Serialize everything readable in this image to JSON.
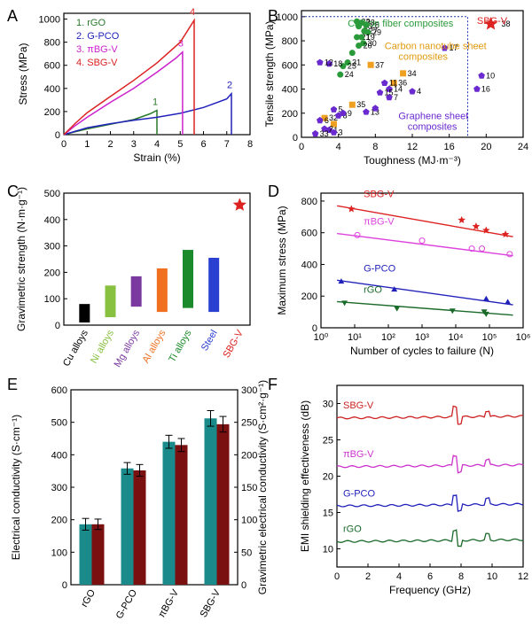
{
  "chart_data": [
    {
      "panel": "A",
      "type": "line",
      "xlabel": "Strain (%)",
      "ylabel": "Stress (MPa)",
      "xlim": [
        0,
        8
      ],
      "ylim": [
        0,
        1050
      ],
      "xticks": [
        0,
        1,
        2,
        3,
        4,
        5,
        6,
        7,
        8
      ],
      "yticks": [
        0,
        200,
        400,
        600,
        800,
        1000
      ],
      "legend_position": "top-left",
      "series": [
        {
          "name": "1. rGO",
          "label": "1",
          "color": "#2a7a2a",
          "x": [
            0,
            0.5,
            1.0,
            2.0,
            3.0,
            3.7,
            4.0,
            4.0
          ],
          "y": [
            0,
            25,
            50,
            90,
            130,
            180,
            210,
            0
          ]
        },
        {
          "name": "2. G-PCO",
          "label": "2",
          "color": "#2222bb",
          "x": [
            0,
            0.5,
            1.0,
            2.0,
            3.0,
            4.0,
            5.0,
            6.0,
            7.0,
            7.2,
            7.2
          ],
          "y": [
            0,
            30,
            60,
            95,
            125,
            150,
            185,
            235,
            310,
            355,
            0
          ]
        },
        {
          "name": "3. πBG-V",
          "label": "3",
          "color": "#cc22cc",
          "x": [
            0,
            0.5,
            1.0,
            2.0,
            3.0,
            4.0,
            4.8,
            5.1,
            5.1
          ],
          "y": [
            0,
            80,
            150,
            280,
            400,
            540,
            660,
            715,
            0
          ]
        },
        {
          "name": "4. SBG-V",
          "label": "4",
          "color": "#dd2222",
          "x": [
            0,
            0.5,
            1.0,
            2.0,
            3.0,
            4.0,
            5.0,
            5.6,
            5.6
          ],
          "y": [
            0,
            100,
            190,
            330,
            470,
            620,
            800,
            990,
            0
          ]
        }
      ]
    },
    {
      "panel": "B",
      "type": "scatter",
      "xlabel": "Toughness (MJ·m⁻³)",
      "ylabel": "Tensile strength (MPa)",
      "xlim": [
        0,
        24
      ],
      "ylim": [
        0,
        1050
      ],
      "xticks": [
        0,
        4,
        8,
        12,
        16,
        20,
        24
      ],
      "yticks": [
        0,
        200,
        400,
        600,
        800,
        1000
      ],
      "annotations": [
        "Carbon fiber composites",
        "Carbon nanotube sheet composites",
        "Graphene sheet composites",
        "SBG-V"
      ],
      "groups": [
        {
          "name": "Carbon fiber composites",
          "color": "#2a9a3a",
          "shape": "circle",
          "points": [
            [
              6.0,
              960,
              "22"
            ],
            [
              6.5,
              950,
              "23"
            ],
            [
              6.2,
              920,
              "26"
            ],
            [
              7.0,
              930,
              "28"
            ],
            [
              6.8,
              880,
              "27"
            ],
            [
              7.2,
              870,
              "29"
            ],
            [
              6.0,
              830,
              "21"
            ],
            [
              6.5,
              830,
              "19"
            ],
            [
              6.7,
              780,
              "30"
            ],
            [
              6.2,
              760,
              "20"
            ],
            [
              5.5,
              700,
              ""
            ],
            [
              5.0,
              620,
              "31"
            ],
            [
              4.5,
              590,
              "25"
            ],
            [
              4.2,
              520,
              "24"
            ]
          ]
        },
        {
          "name": "Carbon nanotube sheet composites",
          "color": "#f0a020",
          "shape": "square",
          "points": [
            [
              7.5,
              600,
              "37"
            ],
            [
              11.0,
              530,
              "34"
            ],
            [
              10.0,
              450,
              "36"
            ],
            [
              2.5,
              160,
              "32"
            ],
            [
              5.5,
              270,
              "35"
            ],
            [
              3.5,
              110,
              ""
            ]
          ]
        },
        {
          "name": "Graphene sheet composites",
          "color": "#6a2ad0",
          "shape": "pentagon",
          "points": [
            [
              3.0,
              610,
              "18"
            ],
            [
              2.0,
              620,
              "12"
            ],
            [
              15.5,
              740,
              "17"
            ],
            [
              19.5,
              510,
              "10"
            ],
            [
              19.0,
              400,
              "16"
            ],
            [
              9.0,
              450,
              "11"
            ],
            [
              9.5,
              400,
              "14"
            ],
            [
              8.5,
              370,
              "15"
            ],
            [
              9.5,
              330,
              "7"
            ],
            [
              7.0,
              210,
              "13"
            ],
            [
              3.5,
              230,
              "5"
            ],
            [
              4.0,
              180,
              "8"
            ],
            [
              2.0,
              140,
              "6"
            ],
            [
              3.0,
              60,
              "1"
            ],
            [
              2.5,
              70,
              "2"
            ],
            [
              3.5,
              40,
              "3"
            ],
            [
              1.5,
              30,
              "33"
            ],
            [
              8.0,
              240,
              ""
            ],
            [
              4.5,
              200,
              "9"
            ],
            [
              12.0,
              380,
              "4"
            ]
          ]
        },
        {
          "name": "SBG-V",
          "color": "#dd2222",
          "shape": "star",
          "points": [
            [
              20.5,
              940,
              "38"
            ]
          ]
        }
      ]
    },
    {
      "panel": "C",
      "type": "bar",
      "ylabel": "Gravimetric strength (N·m·g⁻¹)",
      "ylim": [
        0,
        500
      ],
      "yticks": [
        0,
        100,
        200,
        300,
        400,
        500
      ],
      "categories": [
        "Cu alloys",
        "Ni alloys",
        "Mg alloys",
        "Al alloys",
        "Ti alloys",
        "Steel",
        "SBG-V"
      ],
      "ranges": [
        [
          10,
          80
        ],
        [
          30,
          150
        ],
        [
          70,
          185
        ],
        [
          50,
          215
        ],
        [
          65,
          285
        ],
        [
          50,
          255
        ],
        [
          455,
          455
        ]
      ],
      "colors": [
        "#000000",
        "#88c040",
        "#7a3aa0",
        "#f07020",
        "#1a8a2a",
        "#2a40d0",
        "#dd2222"
      ]
    },
    {
      "panel": "D",
      "type": "scatter",
      "xlabel": "Number of cycles to failure (N)",
      "ylabel": "Maximum stress (MPa)",
      "xscale": "log",
      "xlim": [
        1,
        1000000
      ],
      "ylim": [
        0,
        850
      ],
      "xticks": [
        "10⁰",
        "10¹",
        "10²",
        "10³",
        "10⁴",
        "10⁵",
        "10⁶"
      ],
      "yticks": [
        0,
        200,
        400,
        600,
        800
      ],
      "series": [
        {
          "name": "SBG-V",
          "color": "#dd2222",
          "marker": "star",
          "x": [
            8,
            15000,
            40000,
            80000,
            300000
          ],
          "y": [
            750,
            680,
            640,
            615,
            590
          ],
          "fit": [
            [
              3,
              770
            ],
            [
              500000,
              575
            ]
          ]
        },
        {
          "name": "πBG-V",
          "color": "#dd44dd",
          "marker": "xcircle",
          "x": [
            12,
            1000,
            30000,
            60000,
            400000
          ],
          "y": [
            585,
            550,
            500,
            500,
            465
          ],
          "fit": [
            [
              3,
              595
            ],
            [
              500000,
              455
            ]
          ]
        },
        {
          "name": "G-PCO",
          "color": "#2222bb",
          "marker": "triangle",
          "x": [
            4,
            150,
            80000,
            350000
          ],
          "y": [
            290,
            240,
            180,
            160
          ],
          "fit": [
            [
              3,
              300
            ],
            [
              500000,
              145
            ]
          ]
        },
        {
          "name": "rGO",
          "color": "#1a6a2a",
          "marker": "triangle-down",
          "x": [
            5,
            180,
            8000,
            70000,
            80000
          ],
          "y": [
            160,
            125,
            110,
            105,
            90
          ],
          "fit": [
            [
              3,
              165
            ],
            [
              500000,
              80
            ]
          ]
        }
      ]
    },
    {
      "panel": "E",
      "type": "bar",
      "categories": [
        "rGO",
        "G-PCO",
        "πBG-V",
        "SBG-V"
      ],
      "ylabel": "Electrical conductivity (S·cm⁻¹)",
      "y2label": "Gravimetric electrical conductivity (S·cm²·g⁻¹)",
      "ylim": [
        0,
        600
      ],
      "y2lim": [
        0,
        300
      ],
      "yticks": [
        0,
        100,
        200,
        300,
        400,
        500,
        600
      ],
      "y2ticks": [
        0,
        50,
        100,
        150,
        200,
        250,
        300
      ],
      "series": [
        {
          "name": "Electrical conductivity",
          "axis": "left",
          "color": "#1a8a8a",
          "values": [
            186,
            358,
            440,
            512
          ],
          "errors": [
            18,
            18,
            20,
            24
          ]
        },
        {
          "name": "Gravimetric electrical conductivity",
          "axis": "right",
          "color": "#7a1010",
          "values": [
            93,
            176,
            215,
            247
          ],
          "errors": [
            8,
            9,
            10,
            12
          ]
        }
      ]
    },
    {
      "panel": "F",
      "type": "line",
      "xlabel": "Frequency (GHz)",
      "ylabel": "EMI shielding effectiveness (dB)",
      "xlim": [
        0,
        12
      ],
      "ylim": [
        7.5,
        32.5
      ],
      "xticks": [
        0,
        2,
        4,
        6,
        8,
        10,
        12
      ],
      "yticks": [
        10,
        15,
        20,
        25,
        30
      ],
      "series": [
        {
          "name": "SBG-V",
          "color": "#cc2222",
          "base": 28.0
        },
        {
          "name": "πBG-V",
          "color": "#cc33cc",
          "base": 21.3
        },
        {
          "name": "G-PCO",
          "color": "#2222bb",
          "base": 15.9
        },
        {
          "name": "rGO",
          "color": "#1a6a2a",
          "base": 11.0
        }
      ]
    }
  ],
  "panel_labels": [
    "A",
    "B",
    "C",
    "D",
    "E",
    "F"
  ]
}
